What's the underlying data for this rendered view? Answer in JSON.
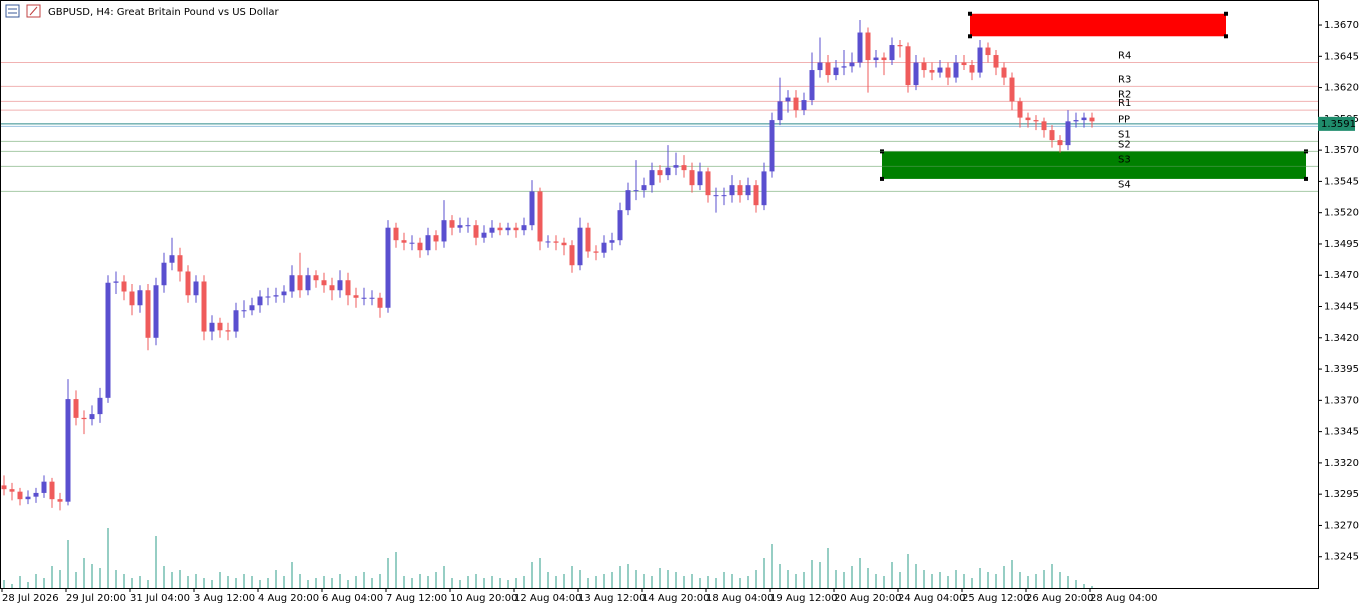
{
  "chart_data": {
    "type": "candlestick",
    "title": "GBPUSD, H4:  Great Britain Pound vs US Dollar",
    "bull_color": "#5a4fcf",
    "bear_color": "#ef5b5b",
    "volume_color": "#2e9c88",
    "ylim": [
      1.322,
      1.369
    ],
    "yticks": [
      {
        "value": 1.367,
        "label": "1.3670"
      },
      1.3645,
      {
        "value": 1.362,
        "label": "1.3620"
      },
      1.3595,
      {
        "value": 1.357,
        "label": "1.3570"
      },
      1.3545,
      {
        "value": 1.352,
        "label": "1.3520"
      },
      1.3495,
      {
        "value": 1.347,
        "label": "1.3470"
      },
      1.3445,
      {
        "value": 1.342,
        "label": "1.3420"
      },
      1.3395,
      {
        "value": 1.337,
        "label": "1.3370"
      },
      1.3345,
      {
        "value": 1.332,
        "label": "1.3320"
      },
      1.3295,
      {
        "value": 1.327,
        "label": "1.3270"
      },
      1.3245
    ],
    "x_labels": [
      "28 Jul 2026",
      "29 Jul 20:00",
      "31 Jul 04:00",
      "3 Aug 12:00",
      "4 Aug 20:00",
      "6 Aug 04:00",
      "7 Aug 12:00",
      "10 Aug 20:00",
      "12 Aug 04:00",
      "13 Aug 12:00",
      "14 Aug 20:00",
      "18 Aug 04:00",
      "19 Aug 12:00",
      "20 Aug 20:00",
      "24 Aug 04:00",
      "25 Aug 12:00",
      "26 Aug 20:00",
      "28 Aug 04:00"
    ],
    "last_price": 1.3591,
    "pivots": [
      {
        "name": "R4",
        "value": 1.364,
        "color": "#e57373"
      },
      {
        "name": "R3",
        "value": 1.3621,
        "color": "#e57373"
      },
      {
        "name": "R2",
        "value": 1.3609,
        "color": "#e57373"
      },
      {
        "name": "R1",
        "value": 1.3602,
        "color": "#e57373"
      },
      {
        "name": "PP",
        "value": 1.3589,
        "color": "#4a90c8"
      },
      {
        "name": "S1",
        "value": 1.3577,
        "color": "#5d9e5d"
      },
      {
        "name": "S2",
        "value": 1.3569,
        "color": "#5d9e5d"
      },
      {
        "name": "S3",
        "value": 1.3557,
        "color": "#5d9e5d"
      },
      {
        "name": "S4",
        "value": 1.3537,
        "color": "#5d9e5d"
      }
    ],
    "zones": [
      {
        "color": "#ff0000",
        "high": 1.3679,
        "low": 1.3661
      },
      {
        "color": "#008000",
        "high": 1.3569,
        "low": 1.3547
      }
    ],
    "ohlc": [
      [
        1.3302,
        1.331,
        1.3294,
        1.3299
      ],
      [
        1.3299,
        1.3304,
        1.329,
        1.3297
      ],
      [
        1.3297,
        1.33,
        1.3286,
        1.3291
      ],
      [
        1.3291,
        1.3298,
        1.3287,
        1.3293
      ],
      [
        1.3293,
        1.33,
        1.3288,
        1.3296
      ],
      [
        1.3296,
        1.331,
        1.3292,
        1.3305
      ],
      [
        1.3305,
        1.3308,
        1.3284,
        1.3291
      ],
      [
        1.3291,
        1.3296,
        1.3282,
        1.3289
      ],
      [
        1.3289,
        1.3387,
        1.3286,
        1.3371
      ],
      [
        1.3371,
        1.3378,
        1.335,
        1.3356
      ],
      [
        1.3356,
        1.3362,
        1.3343,
        1.3355
      ],
      [
        1.3355,
        1.3366,
        1.335,
        1.3359
      ],
      [
        1.3359,
        1.338,
        1.3352,
        1.3372
      ],
      [
        1.3372,
        1.347,
        1.3368,
        1.3464
      ],
      [
        1.3464,
        1.3473,
        1.3455,
        1.3465
      ],
      [
        1.3465,
        1.347,
        1.345,
        1.3457
      ],
      [
        1.3457,
        1.3463,
        1.3438,
        1.3446
      ],
      [
        1.3446,
        1.3462,
        1.344,
        1.3458
      ],
      [
        1.3458,
        1.3463,
        1.341,
        1.342
      ],
      [
        1.342,
        1.3468,
        1.3414,
        1.3462
      ],
      [
        1.3462,
        1.3488,
        1.3456,
        1.348
      ],
      [
        1.348,
        1.35,
        1.3474,
        1.3486
      ],
      [
        1.3486,
        1.3492,
        1.3465,
        1.3473
      ],
      [
        1.3473,
        1.3478,
        1.3448,
        1.3454
      ],
      [
        1.3454,
        1.347,
        1.3448,
        1.3465
      ],
      [
        1.3465,
        1.347,
        1.3418,
        1.3425
      ],
      [
        1.3425,
        1.3438,
        1.3418,
        1.3432
      ],
      [
        1.3432,
        1.3436,
        1.342,
        1.3426
      ],
      [
        1.3426,
        1.3432,
        1.3418,
        1.3425
      ],
      [
        1.3425,
        1.3448,
        1.342,
        1.3442
      ],
      [
        1.3442,
        1.345,
        1.3436,
        1.3442
      ],
      [
        1.3442,
        1.3452,
        1.3438,
        1.3446
      ],
      [
        1.3446,
        1.3458,
        1.344,
        1.3453
      ],
      [
        1.3453,
        1.346,
        1.3446,
        1.3453
      ],
      [
        1.3453,
        1.346,
        1.3448,
        1.3454
      ],
      [
        1.3454,
        1.3462,
        1.3448,
        1.3457
      ],
      [
        1.3457,
        1.3478,
        1.3452,
        1.347
      ],
      [
        1.347,
        1.3488,
        1.3452,
        1.3458
      ],
      [
        1.3458,
        1.3476,
        1.3454,
        1.347
      ],
      [
        1.347,
        1.3474,
        1.346,
        1.3466
      ],
      [
        1.3466,
        1.3472,
        1.3456,
        1.3462
      ],
      [
        1.3462,
        1.3468,
        1.345,
        1.3458
      ],
      [
        1.3458,
        1.3474,
        1.3452,
        1.3466
      ],
      [
        1.3466,
        1.3472,
        1.3446,
        1.3454
      ],
      [
        1.3454,
        1.346,
        1.3444,
        1.3452
      ],
      [
        1.3452,
        1.346,
        1.3446,
        1.3452
      ],
      [
        1.3452,
        1.3458,
        1.3446,
        1.3452
      ],
      [
        1.3452,
        1.3456,
        1.3436,
        1.3444
      ],
      [
        1.3444,
        1.3514,
        1.344,
        1.3508
      ],
      [
        1.3508,
        1.3512,
        1.3492,
        1.3498
      ],
      [
        1.3498,
        1.3504,
        1.349,
        1.3496
      ],
      [
        1.3496,
        1.3502,
        1.349,
        1.3496
      ],
      [
        1.3496,
        1.35,
        1.3484,
        1.349
      ],
      [
        1.349,
        1.3508,
        1.3486,
        1.3502
      ],
      [
        1.3502,
        1.3506,
        1.349,
        1.3497
      ],
      [
        1.3497,
        1.353,
        1.3492,
        1.3514
      ],
      [
        1.3514,
        1.3518,
        1.3502,
        1.3508
      ],
      [
        1.3508,
        1.3516,
        1.3504,
        1.351
      ],
      [
        1.351,
        1.3516,
        1.3504,
        1.351
      ],
      [
        1.351,
        1.3514,
        1.3494,
        1.35
      ],
      [
        1.35,
        1.351,
        1.3496,
        1.3504
      ],
      [
        1.3504,
        1.3514,
        1.35,
        1.3508
      ],
      [
        1.3508,
        1.3512,
        1.3502,
        1.3506
      ],
      [
        1.3506,
        1.3512,
        1.3502,
        1.3508
      ],
      [
        1.3508,
        1.3512,
        1.35,
        1.3506
      ],
      [
        1.3506,
        1.3516,
        1.3502,
        1.351
      ],
      [
        1.351,
        1.3546,
        1.3506,
        1.3537
      ],
      [
        1.3537,
        1.354,
        1.349,
        1.3497
      ],
      [
        1.3497,
        1.3502,
        1.3492,
        1.3497
      ],
      [
        1.3497,
        1.3502,
        1.349,
        1.3496
      ],
      [
        1.3496,
        1.35,
        1.3486,
        1.3494
      ],
      [
        1.3494,
        1.3498,
        1.3472,
        1.3478
      ],
      [
        1.3478,
        1.3516,
        1.3474,
        1.3508
      ],
      [
        1.3508,
        1.3512,
        1.3484,
        1.3489
      ],
      [
        1.3489,
        1.3494,
        1.3482,
        1.3488
      ],
      [
        1.3488,
        1.3502,
        1.3484,
        1.3496
      ],
      [
        1.3496,
        1.3504,
        1.349,
        1.3498
      ],
      [
        1.3498,
        1.3528,
        1.3494,
        1.3522
      ],
      [
        1.3522,
        1.3544,
        1.3518,
        1.3538
      ],
      [
        1.3538,
        1.3562,
        1.353,
        1.3538
      ],
      [
        1.3538,
        1.3548,
        1.3532,
        1.3542
      ],
      [
        1.3542,
        1.356,
        1.3536,
        1.3554
      ],
      [
        1.3554,
        1.3558,
        1.3544,
        1.355
      ],
      [
        1.355,
        1.3574,
        1.3546,
        1.3556
      ],
      [
        1.3556,
        1.3568,
        1.355,
        1.3558
      ],
      [
        1.3558,
        1.3566,
        1.3548,
        1.3554
      ],
      [
        1.3554,
        1.356,
        1.3536,
        1.3542
      ],
      [
        1.3542,
        1.356,
        1.3538,
        1.3553
      ],
      [
        1.3553,
        1.3556,
        1.3528,
        1.3534
      ],
      [
        1.3534,
        1.354,
        1.352,
        1.3534
      ],
      [
        1.3534,
        1.354,
        1.3526,
        1.3534
      ],
      [
        1.3534,
        1.355,
        1.3528,
        1.3542
      ],
      [
        1.3542,
        1.3546,
        1.3528,
        1.3534
      ],
      [
        1.3534,
        1.3548,
        1.353,
        1.3542
      ],
      [
        1.3542,
        1.3546,
        1.352,
        1.3526
      ],
      [
        1.3526,
        1.356,
        1.3522,
        1.3553
      ],
      [
        1.3553,
        1.36,
        1.3548,
        1.3594
      ],
      [
        1.3594,
        1.3628,
        1.359,
        1.3609
      ],
      [
        1.3609,
        1.3618,
        1.36,
        1.3612
      ],
      [
        1.3612,
        1.3618,
        1.3596,
        1.3602
      ],
      [
        1.3602,
        1.3616,
        1.3598,
        1.361
      ],
      [
        1.361,
        1.3648,
        1.3606,
        1.3634
      ],
      [
        1.3634,
        1.366,
        1.3628,
        1.364
      ],
      [
        1.364,
        1.3646,
        1.3624,
        1.363
      ],
      [
        1.363,
        1.3642,
        1.3626,
        1.3636
      ],
      [
        1.3636,
        1.365,
        1.363,
        1.3637
      ],
      [
        1.3637,
        1.3648,
        1.3632,
        1.364
      ],
      [
        1.364,
        1.3674,
        1.3636,
        1.3664
      ],
      [
        1.3664,
        1.3668,
        1.3616,
        1.3642
      ],
      [
        1.3642,
        1.365,
        1.3636,
        1.3644
      ],
      [
        1.3644,
        1.3648,
        1.363,
        1.3642
      ],
      [
        1.3642,
        1.366,
        1.3638,
        1.3654
      ],
      [
        1.3654,
        1.3658,
        1.3644,
        1.3653
      ],
      [
        1.3653,
        1.3656,
        1.3616,
        1.3622
      ],
      [
        1.3622,
        1.3646,
        1.3618,
        1.364
      ],
      [
        1.364,
        1.3644,
        1.3628,
        1.3634
      ],
      [
        1.3634,
        1.364,
        1.3626,
        1.3632
      ],
      [
        1.3632,
        1.3642,
        1.3628,
        1.3636
      ],
      [
        1.3636,
        1.364,
        1.3622,
        1.3628
      ],
      [
        1.3628,
        1.3646,
        1.3624,
        1.364
      ],
      [
        1.364,
        1.3646,
        1.3634,
        1.3638
      ],
      [
        1.3638,
        1.3642,
        1.3626,
        1.3632
      ],
      [
        1.3632,
        1.3658,
        1.3628,
        1.3652
      ],
      [
        1.3652,
        1.3656,
        1.364,
        1.3646
      ],
      [
        1.3646,
        1.365,
        1.363,
        1.3636
      ],
      [
        1.3636,
        1.364,
        1.3622,
        1.3628
      ],
      [
        1.3628,
        1.3632,
        1.3602,
        1.3609
      ],
      [
        1.3609,
        1.3612,
        1.3588,
        1.3596
      ],
      [
        1.3596,
        1.36,
        1.3588,
        1.3594
      ],
      [
        1.3594,
        1.3598,
        1.3586,
        1.3593
      ],
      [
        1.3593,
        1.3596,
        1.358,
        1.3586
      ],
      [
        1.3586,
        1.359,
        1.3572,
        1.3578
      ],
      [
        1.3578,
        1.3582,
        1.3568,
        1.3574
      ],
      [
        1.3574,
        1.3602,
        1.357,
        1.3593
      ],
      [
        1.3593,
        1.36,
        1.3588,
        1.3594
      ],
      [
        1.3594,
        1.36,
        1.3588,
        1.3596
      ],
      [
        1.3596,
        1.36,
        1.3588,
        1.3593
      ]
    ],
    "volumes": [
      8,
      4,
      12,
      6,
      14,
      10,
      22,
      18,
      48,
      16,
      30,
      24,
      20,
      60,
      18,
      14,
      10,
      12,
      8,
      52,
      22,
      16,
      18,
      12,
      14,
      10,
      8,
      16,
      12,
      10,
      14,
      12,
      8,
      10,
      18,
      12,
      26,
      14,
      8,
      10,
      12,
      10,
      14,
      8,
      12,
      16,
      10,
      14,
      30,
      36,
      12,
      10,
      14,
      12,
      16,
      22,
      10,
      8,
      12,
      14,
      10,
      12,
      10,
      8,
      10,
      12,
      26,
      30,
      16,
      12,
      14,
      22,
      18,
      10,
      12,
      14,
      16,
      22,
      24,
      18,
      14,
      12,
      20,
      18,
      16,
      12,
      14,
      10,
      12,
      10,
      16,
      14,
      10,
      12,
      18,
      30,
      44,
      24,
      18,
      14,
      16,
      28,
      26,
      40,
      18,
      16,
      22,
      30,
      20,
      14,
      12,
      26,
      16,
      34,
      24,
      18,
      14,
      16,
      12,
      18,
      14,
      10,
      20,
      16,
      14,
      22,
      28,
      16,
      12,
      14,
      18,
      24,
      16,
      12,
      8,
      4,
      2
    ]
  }
}
